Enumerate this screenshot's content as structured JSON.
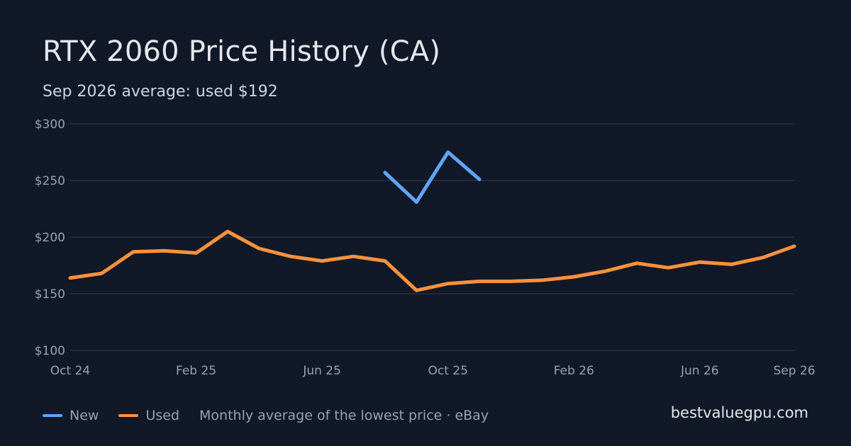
{
  "title": "RTX 2060 Price History (CA)",
  "subtitle": "Sep 2026 average: used $192",
  "footer": {
    "note": "Monthly average of the lowest price · eBay",
    "site": "bestvaluegpu.com"
  },
  "colors": {
    "background": "#111827",
    "grid": "#243042",
    "new": "#60a5fa",
    "used": "#fb923c"
  },
  "chart_data": {
    "type": "line",
    "title": "RTX 2060 Price History (CA)",
    "x": [
      "2024-10",
      "2024-11",
      "2024-12",
      "2025-01",
      "2025-02",
      "2025-03",
      "2025-04",
      "2025-05",
      "2025-06",
      "2025-07",
      "2025-08",
      "2025-09",
      "2025-10",
      "2025-11",
      "2025-12",
      "2026-01",
      "2026-02",
      "2026-03",
      "2026-04",
      "2026-05",
      "2026-06",
      "2026-07",
      "2026-08",
      "2026-09"
    ],
    "x_tick_labels": [
      "Oct 24",
      "Feb 25",
      "Jun 25",
      "Oct 25",
      "Feb 26",
      "Jun 26",
      "Sep 26"
    ],
    "x_tick_dates": [
      "2024-10",
      "2025-02",
      "2025-06",
      "2025-10",
      "2026-02",
      "2026-06",
      "2026-09"
    ],
    "y_tick_labels": [
      "$300",
      "$250",
      "$200",
      "$150",
      "$100"
    ],
    "y_ticks": [
      300,
      250,
      200,
      150,
      100
    ],
    "ylim": [
      100,
      300
    ],
    "grid": true,
    "legend_position": "bottom-left",
    "series": [
      {
        "name": "New",
        "color": "#60a5fa",
        "values": [
          null,
          null,
          null,
          null,
          null,
          null,
          null,
          null,
          null,
          null,
          257,
          231,
          275,
          251,
          null,
          null,
          null,
          null,
          null,
          null,
          null,
          null,
          null,
          null
        ]
      },
      {
        "name": "Used",
        "color": "#fb923c",
        "values": [
          164,
          168,
          187,
          188,
          186,
          205,
          190,
          183,
          179,
          183,
          179,
          153,
          159,
          161,
          161,
          162,
          165,
          170,
          177,
          173,
          178,
          176,
          182,
          192
        ]
      }
    ]
  }
}
